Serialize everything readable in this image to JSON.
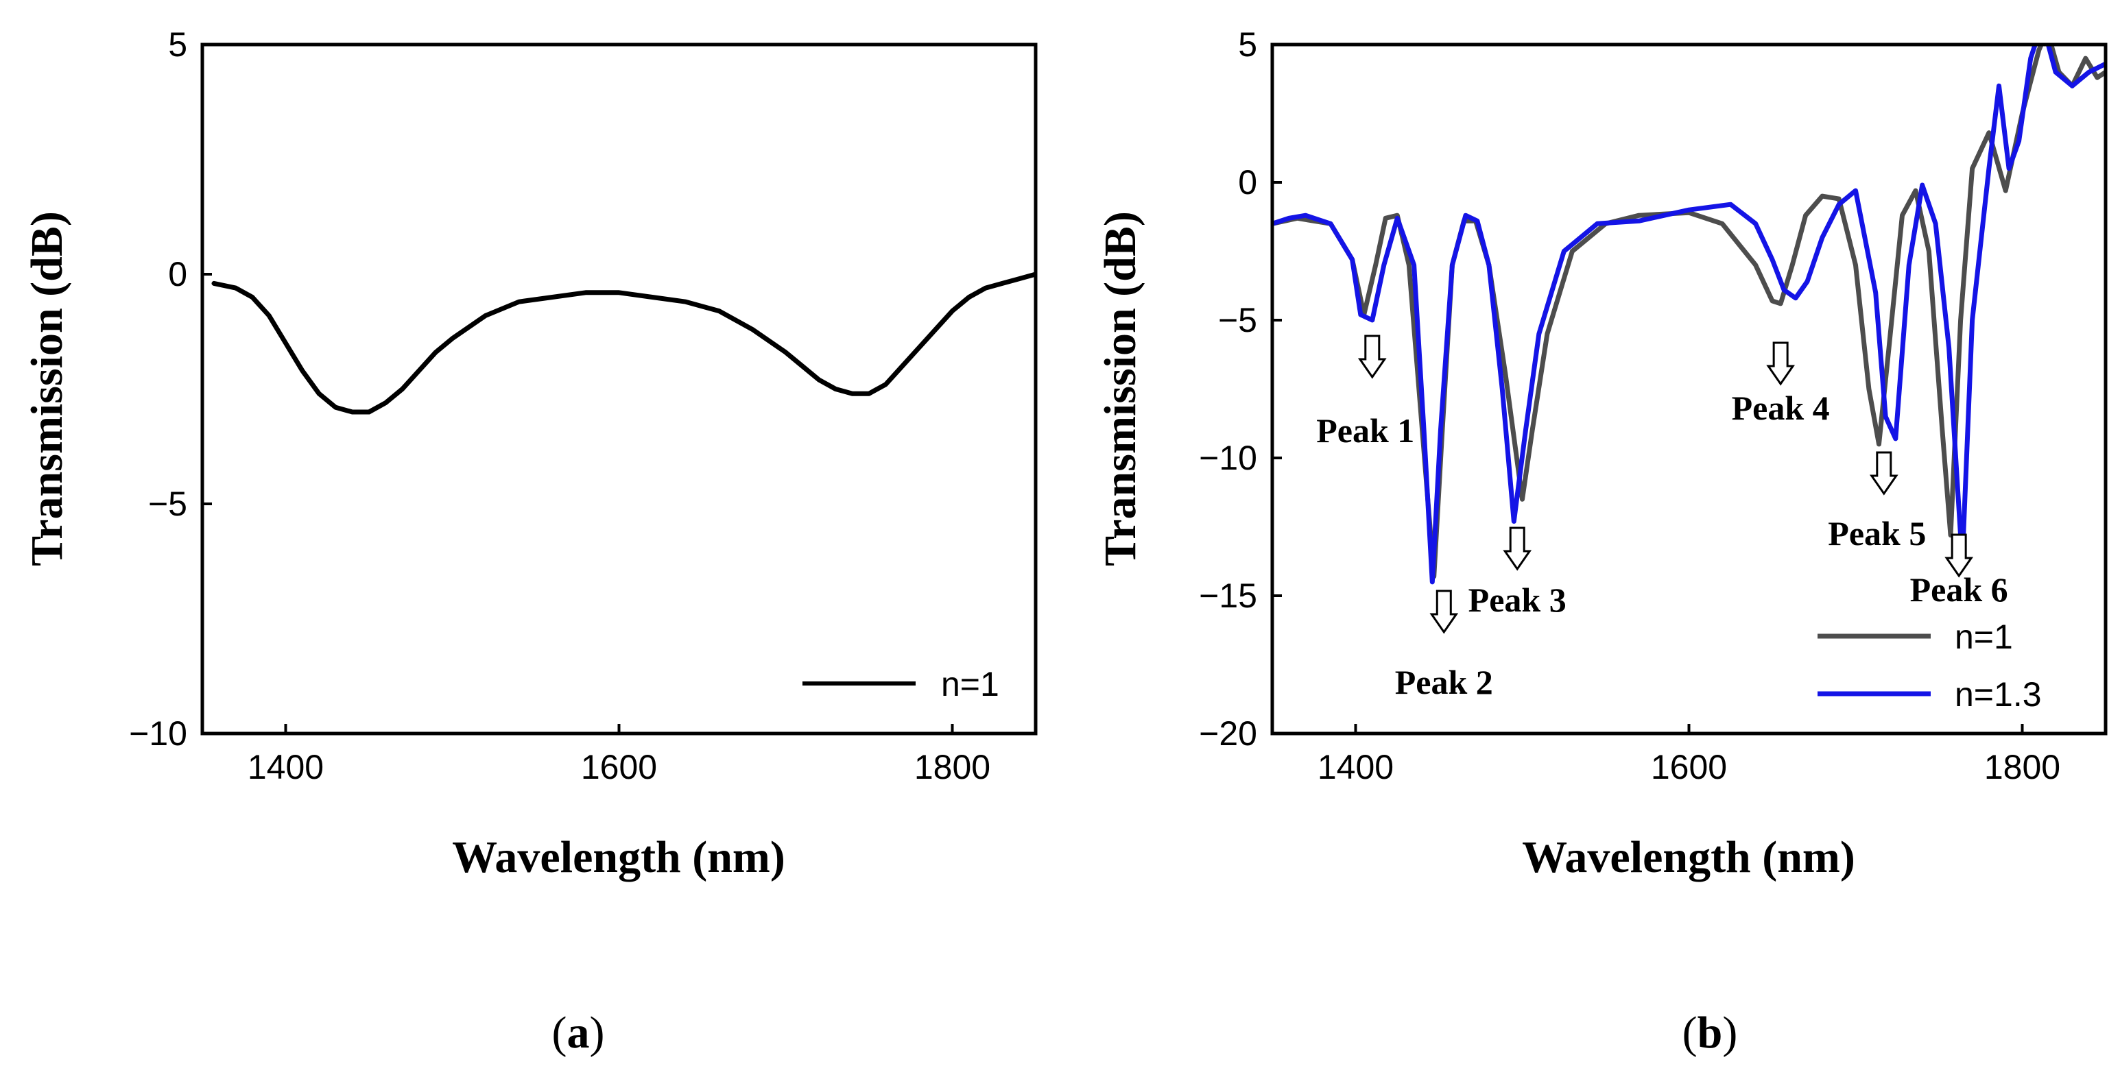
{
  "chart_data": [
    {
      "type": "line",
      "panel_label": "a",
      "xlabel": "Wavelength (nm)",
      "ylabel": "Transmission (dB)",
      "xlim": [
        1350,
        1850
      ],
      "ylim": [
        -10,
        5
      ],
      "xticks": [
        1400,
        1600,
        1800
      ],
      "yticks": [
        -10,
        -5,
        0,
        5
      ],
      "legend_position": "bottom-right",
      "series": [
        {
          "name": "n=1",
          "color": "#000000",
          "x": [
            1357,
            1370,
            1380,
            1390,
            1400,
            1410,
            1420,
            1430,
            1440,
            1450,
            1460,
            1470,
            1480,
            1490,
            1500,
            1520,
            1540,
            1560,
            1580,
            1600,
            1620,
            1640,
            1660,
            1680,
            1700,
            1710,
            1720,
            1730,
            1740,
            1750,
            1760,
            1770,
            1780,
            1790,
            1800,
            1810,
            1820,
            1830,
            1840,
            1850
          ],
          "y": [
            -0.2,
            -0.3,
            -0.5,
            -0.9,
            -1.5,
            -2.1,
            -2.6,
            -2.9,
            -3.0,
            -3.0,
            -2.8,
            -2.5,
            -2.1,
            -1.7,
            -1.4,
            -0.9,
            -0.6,
            -0.5,
            -0.4,
            -0.4,
            -0.5,
            -0.6,
            -0.8,
            -1.2,
            -1.7,
            -2.0,
            -2.3,
            -2.5,
            -2.6,
            -2.6,
            -2.4,
            -2.0,
            -1.6,
            -1.2,
            -0.8,
            -0.5,
            -0.3,
            -0.2,
            -0.1,
            0.0
          ]
        }
      ]
    },
    {
      "type": "line",
      "panel_label": "b",
      "xlabel": "Wavelength (nm)",
      "ylabel": "Transmission (dB)",
      "xlim": [
        1350,
        1850
      ],
      "ylim": [
        -20,
        5
      ],
      "xticks": [
        1400,
        1600,
        1800
      ],
      "yticks": [
        -20,
        -15,
        -10,
        -5,
        0,
        5
      ],
      "legend_position": "bottom-right",
      "series": [
        {
          "name": "n=1",
          "color": "#4d4d4d",
          "x": [
            1350,
            1365,
            1385,
            1398,
            1405,
            1412,
            1418,
            1425,
            1432,
            1440,
            1447,
            1452,
            1458,
            1465,
            1472,
            1480,
            1490,
            1500,
            1506,
            1515,
            1530,
            1550,
            1570,
            1600,
            1620,
            1640,
            1650,
            1655,
            1662,
            1670,
            1680,
            1690,
            1700,
            1708,
            1714,
            1720,
            1728,
            1736,
            1744,
            1752,
            1757,
            1763,
            1770,
            1780,
            1790,
            1800,
            1810,
            1815,
            1822,
            1830,
            1838,
            1845,
            1850
          ],
          "y": [
            -1.5,
            -1.3,
            -1.5,
            -2.8,
            -4.8,
            -3.0,
            -1.3,
            -1.2,
            -3.0,
            -9.0,
            -14.3,
            -9.0,
            -3.0,
            -1.4,
            -1.4,
            -3.0,
            -7.0,
            -11.5,
            -9.0,
            -5.5,
            -2.5,
            -1.5,
            -1.2,
            -1.1,
            -1.5,
            -3.0,
            -4.3,
            -4.4,
            -3.0,
            -1.2,
            -0.5,
            -0.6,
            -3.0,
            -7.5,
            -9.5,
            -6.0,
            -1.2,
            -0.3,
            -2.5,
            -9.0,
            -12.8,
            -5.0,
            0.5,
            1.8,
            -0.3,
            2.5,
            4.8,
            5.5,
            4.0,
            3.5,
            4.5,
            3.8,
            4.0
          ]
        },
        {
          "name": "n=1.3",
          "color": "#1414e6",
          "x": [
            1350,
            1360,
            1370,
            1385,
            1398,
            1403,
            1410,
            1417,
            1425,
            1435,
            1441,
            1446,
            1451,
            1458,
            1466,
            1473,
            1480,
            1488,
            1495,
            1502,
            1510,
            1525,
            1545,
            1570,
            1600,
            1625,
            1640,
            1650,
            1657,
            1664,
            1671,
            1680,
            1690,
            1700,
            1712,
            1718,
            1724,
            1732,
            1740,
            1748,
            1756,
            1764,
            1770,
            1780,
            1786,
            1792,
            1798,
            1805,
            1812,
            1820,
            1830,
            1840,
            1850
          ],
          "y": [
            -1.5,
            -1.3,
            -1.2,
            -1.5,
            -2.8,
            -4.8,
            -5.0,
            -3.0,
            -1.3,
            -3.0,
            -9.0,
            -14.5,
            -9.0,
            -3.0,
            -1.2,
            -1.4,
            -3.0,
            -7.5,
            -12.3,
            -9.0,
            -5.5,
            -2.5,
            -1.5,
            -1.4,
            -1.0,
            -0.8,
            -1.5,
            -2.8,
            -3.9,
            -4.2,
            -3.6,
            -2.0,
            -0.8,
            -0.3,
            -4.0,
            -8.5,
            -9.3,
            -3.0,
            -0.1,
            -1.5,
            -6.0,
            -13.8,
            -5.0,
            0.5,
            3.5,
            0.5,
            1.5,
            4.5,
            5.8,
            4.0,
            3.5,
            4.0,
            4.3
          ]
        }
      ],
      "annotations": [
        {
          "label": "Peak 1",
          "x": 1410
        },
        {
          "label": "Peak 2",
          "x": 1453
        },
        {
          "label": "Peak 3",
          "x": 1497
        },
        {
          "label": "Peak 4",
          "x": 1655
        },
        {
          "label": "Peak 5",
          "x": 1717
        },
        {
          "label": "Peak 6",
          "x": 1762
        }
      ]
    }
  ]
}
